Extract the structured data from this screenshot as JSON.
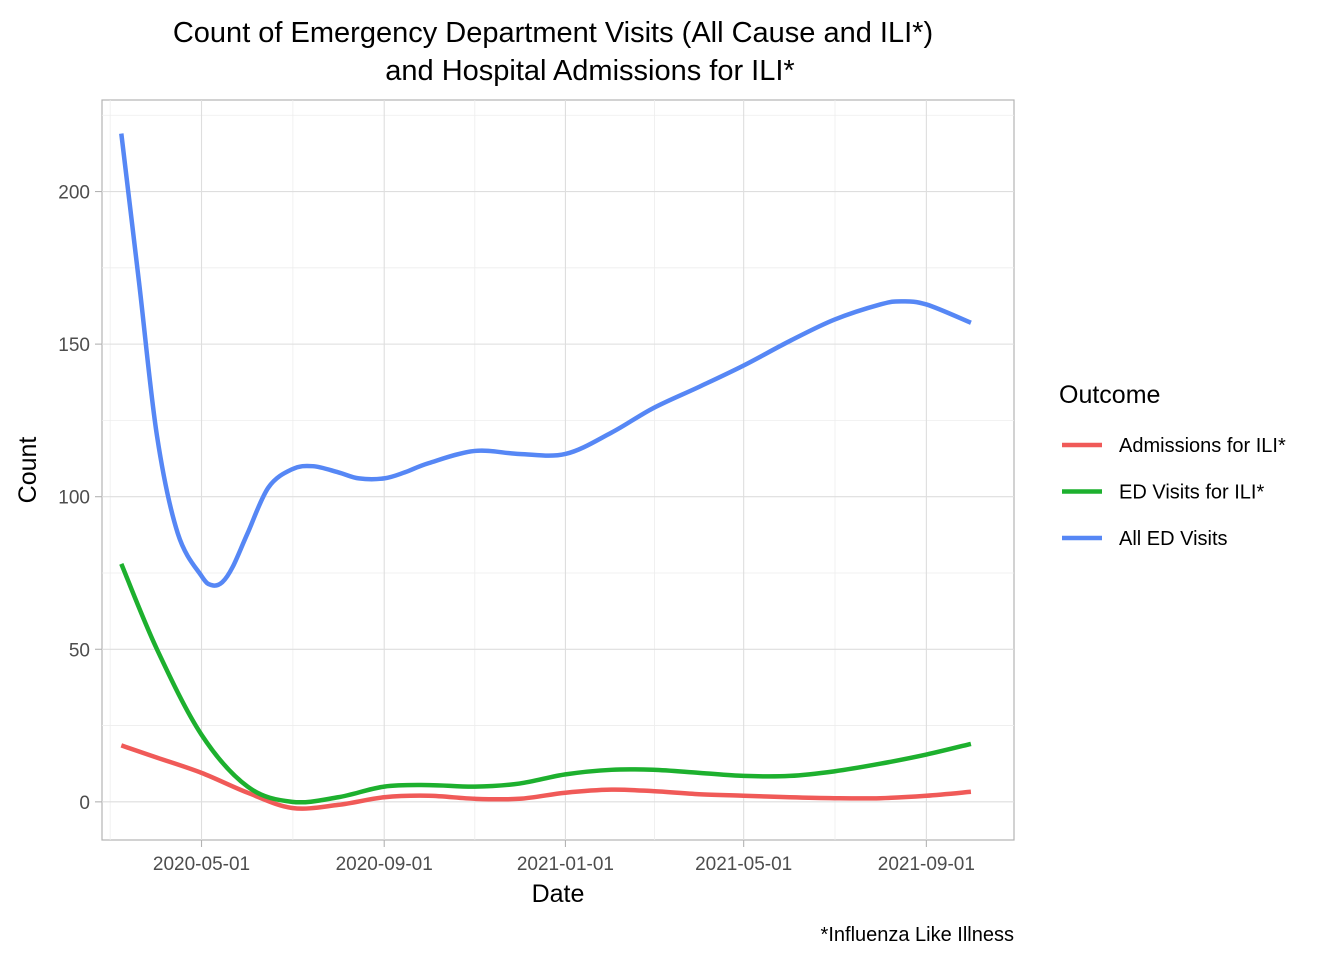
{
  "chart_data": {
    "type": "line",
    "title_line1": "Count of Emergency Department Visits (All Cause and ILI*)",
    "title_line2": "and Hospital Admissions for ILI*",
    "xlabel": "Date",
    "ylabel": "Count",
    "caption": "*Influenza Like Illness",
    "x_tick_labels": [
      "2020-05-01",
      "2020-09-01",
      "2021-01-01",
      "2021-05-01",
      "2021-09-01"
    ],
    "y_tick_labels": [
      "0",
      "50",
      "100",
      "150",
      "200"
    ],
    "y_ticks": [
      0,
      50,
      100,
      150,
      200
    ],
    "xlim": [
      "2020-02-24",
      "2021-10-30"
    ],
    "ylim": [
      -12.5,
      230
    ],
    "grid": true,
    "legend": {
      "title": "Outcome",
      "position": "right"
    },
    "series": [
      {
        "name": "Admissions for ILI*",
        "color": "#F05A58",
        "x": [
          "2020-03-08",
          "2020-04-01",
          "2020-05-01",
          "2020-06-01",
          "2020-07-01",
          "2020-08-01",
          "2020-09-01",
          "2020-10-01",
          "2020-11-01",
          "2020-12-01",
          "2021-01-01",
          "2021-02-01",
          "2021-03-01",
          "2021-04-01",
          "2021-05-01",
          "2021-06-01",
          "2021-07-01",
          "2021-08-01",
          "2021-09-01",
          "2021-10-01"
        ],
        "values": [
          18.5,
          14.5,
          9.5,
          3,
          -2,
          -1,
          1.5,
          2,
          1,
          1,
          3,
          4,
          3.5,
          2.5,
          2,
          1.5,
          1.2,
          1.2,
          2,
          3.3
        ]
      },
      {
        "name": "ED Visits for ILI*",
        "color": "#1DB02E",
        "x": [
          "2020-03-08",
          "2020-04-01",
          "2020-05-01",
          "2020-06-01",
          "2020-07-01",
          "2020-08-01",
          "2020-09-01",
          "2020-10-01",
          "2020-11-01",
          "2020-12-01",
          "2021-01-01",
          "2021-02-01",
          "2021-03-01",
          "2021-04-01",
          "2021-05-01",
          "2021-06-01",
          "2021-07-01",
          "2021-08-01",
          "2021-09-01",
          "2021-10-01"
        ],
        "values": [
          78,
          50,
          22,
          5,
          0,
          1.5,
          5,
          5.5,
          5,
          6,
          9,
          10.5,
          10.5,
          9.5,
          8.5,
          8.5,
          10,
          12.5,
          15.5,
          19
        ]
      },
      {
        "name": "All ED Visits",
        "color": "#5687F5",
        "x": [
          "2020-03-08",
          "2020-03-20",
          "2020-04-01",
          "2020-04-15",
          "2020-05-01",
          "2020-05-08",
          "2020-05-15",
          "2020-05-22",
          "2020-06-01",
          "2020-06-15",
          "2020-07-01",
          "2020-07-15",
          "2020-08-01",
          "2020-08-15",
          "2020-09-01",
          "2020-09-15",
          "2020-10-01",
          "2020-11-01",
          "2020-12-01",
          "2021-01-01",
          "2021-02-01",
          "2021-03-01",
          "2021-04-01",
          "2021-05-01",
          "2021-06-01",
          "2021-07-01",
          "2021-08-01",
          "2021-08-15",
          "2021-09-01",
          "2021-10-01"
        ],
        "values": [
          219,
          170,
          120,
          88,
          74,
          71,
          72,
          77,
          88,
          103,
          109,
          110,
          108,
          106,
          106,
          108,
          111,
          115,
          114,
          114,
          121,
          129,
          136,
          143,
          151,
          158,
          163,
          164,
          163,
          157
        ]
      }
    ]
  }
}
